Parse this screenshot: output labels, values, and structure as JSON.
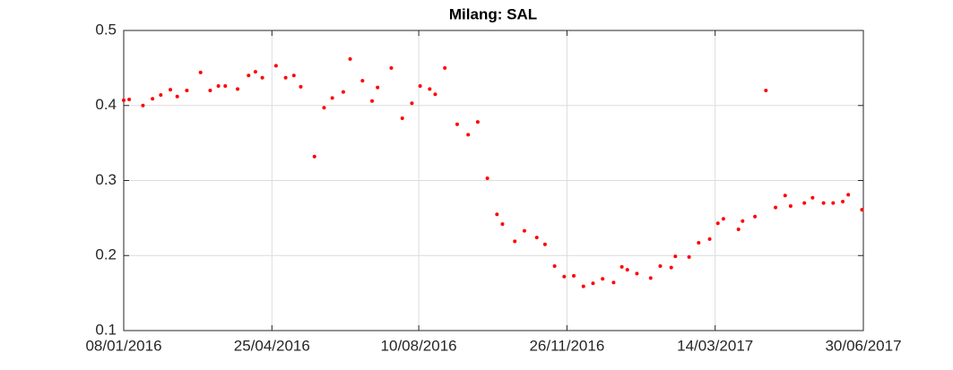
{
  "chart_data": {
    "type": "scatter",
    "title": "Milang: SAL",
    "color": "#ff0000",
    "grid": true,
    "x": [
      "08/01/2016",
      "12/01/2016",
      "22/01/2016",
      "29/01/2016",
      "04/02/2016",
      "11/02/2016",
      "16/02/2016",
      "23/02/2016",
      "04/03/2016",
      "11/03/2016",
      "17/03/2016",
      "22/03/2016",
      "31/03/2016",
      "08/04/2016",
      "13/04/2016",
      "18/04/2016",
      "28/04/2016",
      "05/05/2016",
      "11/05/2016",
      "16/05/2016",
      "26/05/2016",
      "02/06/2016",
      "08/06/2016",
      "16/06/2016",
      "21/06/2016",
      "30/06/2016",
      "07/07/2016",
      "11/07/2016",
      "21/07/2016",
      "29/07/2016",
      "05/08/2016",
      "11/08/2016",
      "18/08/2016",
      "22/08/2016",
      "29/08/2016",
      "07/09/2016",
      "15/09/2016",
      "22/09/2016",
      "29/09/2016",
      "06/10/2016",
      "10/10/2016",
      "19/10/2016",
      "26/10/2016",
      "04/11/2016",
      "10/11/2016",
      "17/11/2016",
      "24/11/2016",
      "01/12/2016",
      "08/12/2016",
      "15/12/2016",
      "22/12/2016",
      "30/12/2016",
      "05/01/2017",
      "09/01/2017",
      "16/01/2017",
      "26/01/2017",
      "02/02/2017",
      "10/02/2017",
      "13/02/2017",
      "23/02/2017",
      "02/03/2017",
      "10/03/2017",
      "16/03/2017",
      "20/03/2017",
      "31/03/2017",
      "03/04/2017",
      "12/04/2017",
      "20/04/2017",
      "27/04/2017",
      "04/05/2017",
      "08/05/2017",
      "18/05/2017",
      "24/05/2017",
      "01/06/2017",
      "08/06/2017",
      "15/06/2017",
      "19/06/2017",
      "29/06/2017"
    ],
    "values": [
      0.407,
      0.408,
      0.4,
      0.409,
      0.414,
      0.421,
      0.412,
      0.42,
      0.444,
      0.42,
      0.426,
      0.426,
      0.422,
      0.44,
      0.445,
      0.437,
      0.453,
      0.437,
      0.44,
      0.425,
      0.332,
      0.397,
      0.41,
      0.418,
      0.462,
      0.433,
      0.406,
      0.424,
      0.45,
      0.383,
      0.403,
      0.426,
      0.422,
      0.415,
      0.45,
      0.375,
      0.361,
      0.378,
      0.303,
      0.255,
      0.242,
      0.219,
      0.233,
      0.224,
      0.215,
      0.186,
      0.172,
      0.173,
      0.159,
      0.163,
      0.169,
      0.164,
      0.185,
      0.181,
      0.176,
      0.17,
      0.186,
      0.184,
      0.199,
      0.198,
      0.217,
      0.222,
      0.243,
      0.249,
      0.235,
      0.246,
      0.252,
      0.42,
      0.264,
      0.28,
      0.266,
      0.27,
      0.277,
      0.27,
      0.27,
      0.272,
      0.281,
      0.261
    ],
    "xlim": [
      "08/01/2016",
      "30/06/2017"
    ],
    "xticks": [
      "08/01/2016",
      "25/04/2016",
      "10/08/2016",
      "26/11/2016",
      "14/03/2017",
      "30/06/2017"
    ],
    "ylim": [
      0.1,
      0.5
    ],
    "yticks": [
      0.1,
      0.2,
      0.3,
      0.4,
      0.5
    ]
  }
}
